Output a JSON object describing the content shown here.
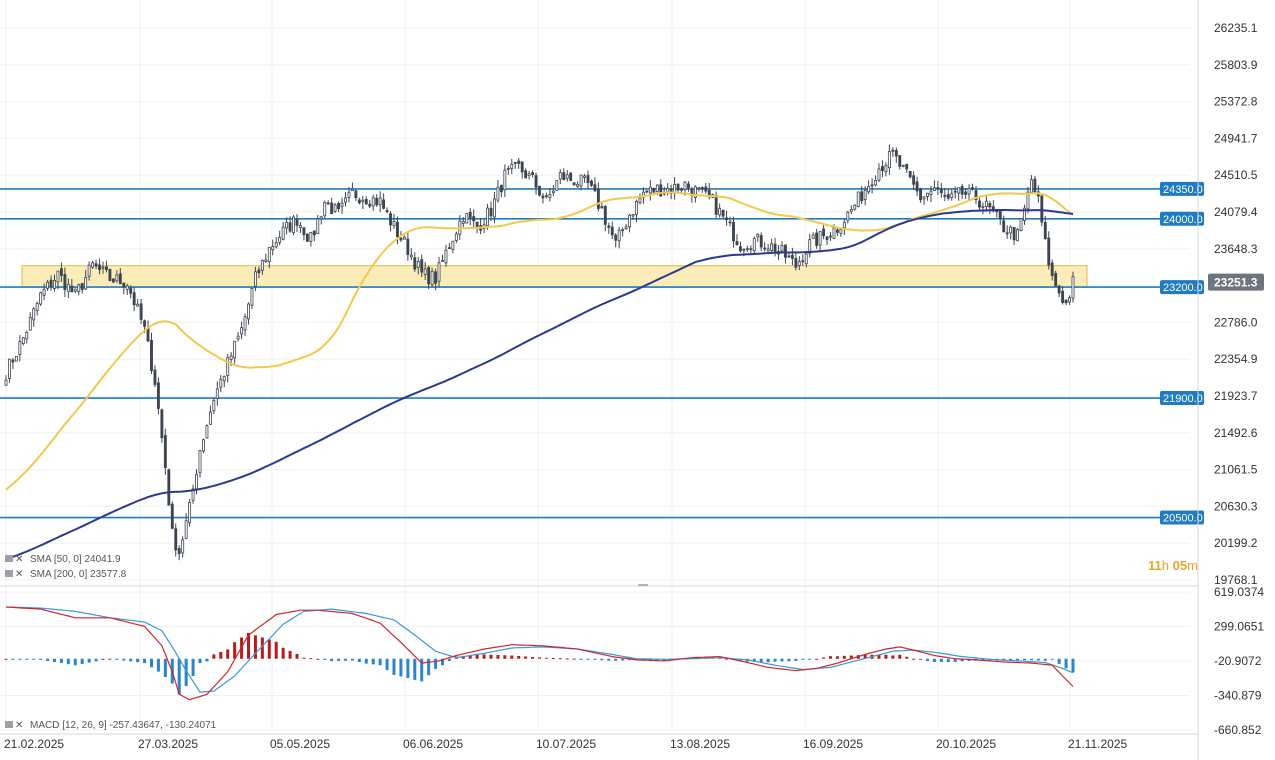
{
  "chart_data": {
    "type": "candlestick",
    "price_axis": {
      "ticks": [
        "26235.1",
        "25803.9",
        "25372.8",
        "24941.7",
        "24510.5",
        "24079.4",
        "23648.3",
        "22786.0",
        "22354.9",
        "21923.7",
        "21492.6",
        "21061.5",
        "20630.3",
        "20199.2",
        "19768.1"
      ],
      "range": [
        19768.1,
        26235.1
      ]
    },
    "macd_axis": {
      "ticks": [
        "619.0374",
        "299.0651",
        "-20.9072",
        "-340.879",
        "-660.852"
      ],
      "range": [
        -660.852,
        619.0374
      ]
    },
    "x_ticks": [
      "21.02.2025",
      "27.03.2025",
      "05.05.2025",
      "06.06.2025",
      "10.07.2025",
      "13.08.2025",
      "16.09.2025",
      "20.10.2025",
      "21.11.2025"
    ],
    "horizontal_levels": [
      {
        "label": "24350.0",
        "value": 24350.0
      },
      {
        "label": "24000.0",
        "value": 24000.0
      },
      {
        "label": "23200.0",
        "value": 23200.0
      },
      {
        "label": "21900.0",
        "value": 21900.0
      },
      {
        "label": "20500.0",
        "value": 20500.0
      }
    ],
    "zone": {
      "low": 23200,
      "high": 23450
    },
    "last_price": {
      "label": "23251.3",
      "value": 23251.3
    },
    "countdown": {
      "h": "11",
      "h_unit": "h",
      "m": "05",
      "m_unit": "m"
    },
    "legend": {
      "sma50": "SMA [50, 0] 24041.9",
      "sma200": "SMA [200, 0] 23577.8",
      "macd": "MACD [12, 26, 9] -257.43647, -130.24071"
    },
    "colors": {
      "candle": "#3d4550",
      "level": "#1f7bc4",
      "level_label_bg": "#1f7bc4",
      "sma50": "#f2c94c",
      "sma200": "#2b3990",
      "zone_fill": "#fbe8a6",
      "zone_stroke": "#e0b84a",
      "macd_line": "#d0262a",
      "signal_line": "#3a9ad9",
      "hist_pos": "#b71c1c",
      "hist_neg": "#2a86c8",
      "price_label_bg": "#6e757c"
    },
    "price_keypoints": [
      [
        0,
        22200
      ],
      [
        5,
        22600
      ],
      [
        10,
        23100
      ],
      [
        15,
        23350
      ],
      [
        20,
        23100
      ],
      [
        25,
        23450
      ],
      [
        30,
        23300
      ],
      [
        35,
        23250
      ],
      [
        40,
        22700
      ],
      [
        43,
        22100
      ],
      [
        46,
        21100
      ],
      [
        48,
        20300
      ],
      [
        50,
        20100
      ],
      [
        53,
        20600
      ],
      [
        56,
        21300
      ],
      [
        60,
        21900
      ],
      [
        64,
        22300
      ],
      [
        68,
        22700
      ],
      [
        72,
        23300
      ],
      [
        76,
        23650
      ],
      [
        80,
        23850
      ],
      [
        84,
        24000
      ],
      [
        88,
        23750
      ],
      [
        92,
        24200
      ],
      [
        96,
        24050
      ],
      [
        100,
        24300
      ],
      [
        104,
        24250
      ],
      [
        108,
        24200
      ],
      [
        112,
        23900
      ],
      [
        116,
        23650
      ],
      [
        120,
        23350
      ],
      [
        124,
        23300
      ],
      [
        128,
        23700
      ],
      [
        132,
        24050
      ],
      [
        136,
        23900
      ],
      [
        140,
        24100
      ],
      [
        144,
        24500
      ],
      [
        148,
        24600
      ],
      [
        152,
        24450
      ],
      [
        156,
        24200
      ],
      [
        160,
        24500
      ],
      [
        164,
        24450
      ],
      [
        168,
        24400
      ],
      [
        172,
        24100
      ],
      [
        176,
        23700
      ],
      [
        180,
        24050
      ],
      [
        184,
        24300
      ],
      [
        188,
        24350
      ],
      [
        192,
        24350
      ],
      [
        196,
        24400
      ],
      [
        200,
        24300
      ],
      [
        204,
        24200
      ],
      [
        208,
        23950
      ],
      [
        212,
        23700
      ],
      [
        216,
        23750
      ],
      [
        220,
        23700
      ],
      [
        224,
        23600
      ],
      [
        228,
        23450
      ],
      [
        232,
        23700
      ],
      [
        236,
        23800
      ],
      [
        240,
        23900
      ],
      [
        244,
        24100
      ],
      [
        248,
        24350
      ],
      [
        252,
        24600
      ],
      [
        256,
        24750
      ],
      [
        260,
        24500
      ],
      [
        264,
        24250
      ],
      [
        268,
        24350
      ],
      [
        272,
        24200
      ],
      [
        276,
        24300
      ],
      [
        280,
        24250
      ],
      [
        284,
        24100
      ],
      [
        288,
        23900
      ],
      [
        292,
        23800
      ],
      [
        294,
        24100
      ],
      [
        296,
        24450
      ],
      [
        298,
        24200
      ],
      [
        300,
        23700
      ],
      [
        302,
        23300
      ],
      [
        304,
        23150
      ],
      [
        306,
        23000
      ],
      [
        308,
        23250
      ]
    ],
    "macd_keypoints": [
      [
        0,
        480
      ],
      [
        10,
        460
      ],
      [
        20,
        380
      ],
      [
        30,
        380
      ],
      [
        40,
        300
      ],
      [
        45,
        120
      ],
      [
        48,
        -120
      ],
      [
        50,
        -330
      ],
      [
        53,
        -380
      ],
      [
        58,
        -330
      ],
      [
        64,
        -120
      ],
      [
        70,
        220
      ],
      [
        78,
        410
      ],
      [
        85,
        450
      ],
      [
        90,
        450
      ],
      [
        100,
        420
      ],
      [
        108,
        330
      ],
      [
        115,
        120
      ],
      [
        120,
        -40
      ],
      [
        125,
        -20
      ],
      [
        130,
        30
      ],
      [
        138,
        90
      ],
      [
        146,
        130
      ],
      [
        155,
        120
      ],
      [
        165,
        90
      ],
      [
        175,
        20
      ],
      [
        182,
        -10
      ],
      [
        190,
        -20
      ],
      [
        198,
        10
      ],
      [
        206,
        20
      ],
      [
        212,
        -20
      ],
      [
        220,
        -80
      ],
      [
        228,
        -110
      ],
      [
        234,
        -90
      ],
      [
        240,
        -40
      ],
      [
        248,
        40
      ],
      [
        254,
        90
      ],
      [
        258,
        110
      ],
      [
        262,
        80
      ],
      [
        268,
        30
      ],
      [
        274,
        0
      ],
      [
        280,
        -10
      ],
      [
        288,
        -30
      ],
      [
        296,
        -40
      ],
      [
        302,
        -60
      ],
      [
        305,
        -160
      ],
      [
        308,
        -257
      ]
    ],
    "signal_keypoints": [
      [
        0,
        480
      ],
      [
        10,
        470
      ],
      [
        20,
        440
      ],
      [
        30,
        380
      ],
      [
        40,
        340
      ],
      [
        45,
        260
      ],
      [
        48,
        110
      ],
      [
        52,
        -110
      ],
      [
        56,
        -310
      ],
      [
        60,
        -300
      ],
      [
        66,
        -160
      ],
      [
        72,
        50
      ],
      [
        80,
        320
      ],
      [
        86,
        440
      ],
      [
        94,
        460
      ],
      [
        104,
        420
      ],
      [
        112,
        360
      ],
      [
        118,
        220
      ],
      [
        124,
        70
      ],
      [
        130,
        10
      ],
      [
        138,
        50
      ],
      [
        146,
        100
      ],
      [
        155,
        110
      ],
      [
        165,
        90
      ],
      [
        175,
        40
      ],
      [
        182,
        0
      ],
      [
        190,
        -5
      ],
      [
        198,
        0
      ],
      [
        206,
        10
      ],
      [
        214,
        -10
      ],
      [
        222,
        -60
      ],
      [
        230,
        -100
      ],
      [
        238,
        -80
      ],
      [
        244,
        -30
      ],
      [
        250,
        20
      ],
      [
        256,
        70
      ],
      [
        262,
        80
      ],
      [
        268,
        60
      ],
      [
        276,
        20
      ],
      [
        284,
        -5
      ],
      [
        292,
        -20
      ],
      [
        300,
        -35
      ],
      [
        305,
        -90
      ],
      [
        308,
        -130
      ]
    ]
  }
}
